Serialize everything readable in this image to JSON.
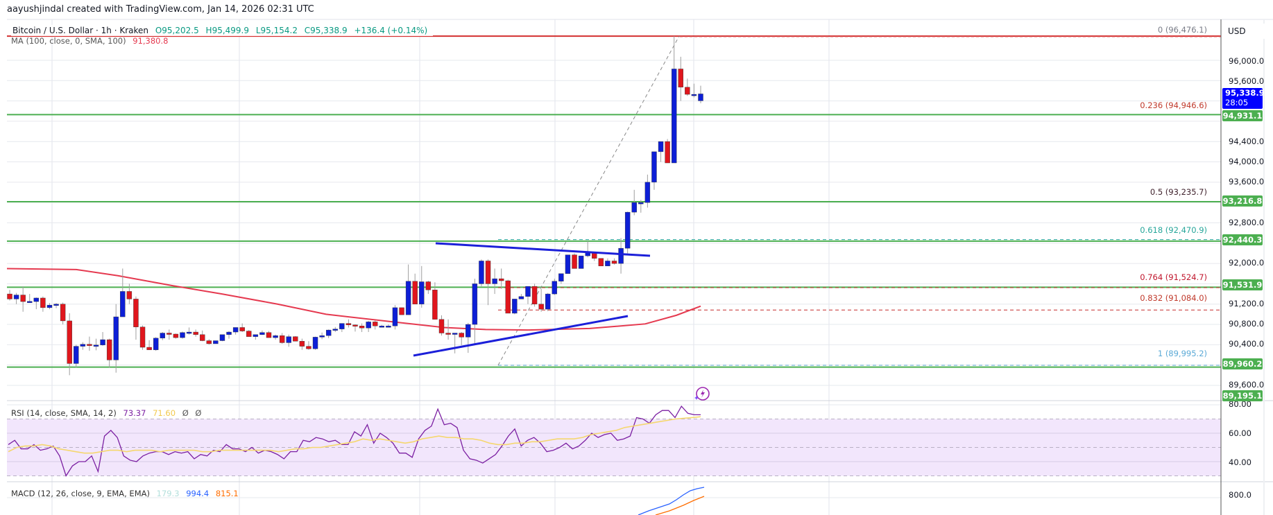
{
  "attribution": "aayushjindal created with TradingView.com, Jan 14, 2026 02:31 UTC",
  "header": {
    "symbol": "Bitcoin / U.S. Dollar · 1h · Kraken",
    "open": "O95,202.5",
    "high": "H95,499.9",
    "low": "L95,154.2",
    "close": "C95,338.9",
    "change": "+136.4 (+0.14%)"
  },
  "ma_legend": {
    "label": "MA (100, close, 0, SMA, 100)",
    "value": "91,380.8"
  },
  "rsi_legend": {
    "label": "RSI (14, close, SMA, 14, 2)",
    "rsi": "73.37",
    "sma": "71.60",
    "extra1": "Ø",
    "extra2": "Ø"
  },
  "macd_legend": {
    "label": "MACD (12, 26, close, 9, EMA, EMA)",
    "hist": "179.3",
    "macd": "994.4",
    "signal": "815.1"
  },
  "axis": {
    "currency": "USD",
    "price_ticks": [
      "96,000.0",
      "95,600.0",
      "94,400.0",
      "94,000.0",
      "93,600.0",
      "92,800.0",
      "92,000.0",
      "91,200.0",
      "90,800.0",
      "90,400.0",
      "89,600.0"
    ],
    "rsi_ticks": [
      "80.00",
      "60.00",
      "40.00"
    ],
    "macd_ticks": [
      "800.0"
    ]
  },
  "current_price": {
    "value": "95,338.9",
    "countdown": "28:05"
  },
  "level_tags": [
    "94,931.1",
    "93,216.8",
    "92,440.3",
    "91,531.9",
    "89,960.2",
    "89,195.1"
  ],
  "fib_labels": [
    {
      "text": "0 (96,476.1)",
      "color": "#787b86"
    },
    {
      "text": "0.236 (94,946.6)",
      "color": "#c0392b"
    },
    {
      "text": "0.5 (93,235.7)",
      "color": "#3d1f2a"
    },
    {
      "text": "0.618 (92,470.9)",
      "color": "#26a69a"
    },
    {
      "text": "0.764 (91,524.7)",
      "color": "#c0162d"
    },
    {
      "text": "0.832 (91,084.0)",
      "color": "#c0392b"
    },
    {
      "text": "1 (89,995.2)",
      "color": "#5aa9d6"
    }
  ],
  "colors": {
    "up_candle": "#0d1fd6",
    "down_candle": "#e0161d",
    "support_line": "#4caf50",
    "ma_line": "#e5394f",
    "trendline": "#1b1fd9",
    "rsi_line": "#7b1fa2",
    "rsi_sma": "#f5d76e",
    "rsi_band": "#f2e6fc",
    "price_tag_bg": "#0000ff",
    "level_tag_bg": "#4caf50",
    "macd_line": "#2962ff",
    "signal_line": "#ff6d00"
  },
  "chart_data": {
    "type": "candlestick",
    "title": "Bitcoin / U.S. Dollar · 1h · Kraken",
    "ylabel": "USD",
    "ylim": [
      89195.1,
      96476.1
    ],
    "horizontal_levels": [
      96476.1,
      94931.1,
      93216.8,
      92440.3,
      91531.9,
      89960.2
    ],
    "fibonacci": [
      {
        "ratio": 0,
        "price": 96476.1
      },
      {
        "ratio": 0.236,
        "price": 94946.6
      },
      {
        "ratio": 0.5,
        "price": 93235.7
      },
      {
        "ratio": 0.618,
        "price": 92470.9
      },
      {
        "ratio": 0.764,
        "price": 91524.7
      },
      {
        "ratio": 0.832,
        "price": 91084.0
      },
      {
        "ratio": 1,
        "price": 89995.2
      }
    ],
    "last_ohlc": {
      "open": 95202.5,
      "high": 95499.9,
      "low": 95154.2,
      "close": 95338.9,
      "change": 136.4,
      "change_pct": 0.14
    },
    "ma100_last": 91380.8,
    "rsi": {
      "period": 14,
      "value": 73.37,
      "sma": 71.6,
      "bands": [
        30,
        50,
        70
      ]
    },
    "macd": {
      "fast": 12,
      "slow": 26,
      "signal": 9,
      "histogram": 179.3,
      "macd": 994.4,
      "signal_value": 815.1
    },
    "candles": [
      [
        91400,
        91480,
        91270,
        91300
      ],
      [
        91300,
        91420,
        91200,
        91380
      ],
      [
        91380,
        91550,
        91050,
        91250
      ],
      [
        91250,
        91400,
        91250,
        91255
      ],
      [
        91250,
        91330,
        91100,
        91320
      ],
      [
        91320,
        91350,
        91050,
        91130
      ],
      [
        91130,
        91220,
        91100,
        91180
      ],
      [
        91180,
        91220,
        91120,
        91200
      ],
      [
        91200,
        91230,
        90800,
        90870
      ],
      [
        90870,
        91020,
        89800,
        90030
      ],
      [
        90030,
        90400,
        89950,
        90370
      ],
      [
        90370,
        90450,
        90300,
        90410
      ],
      [
        90410,
        90560,
        90280,
        90390
      ],
      [
        90390,
        90520,
        90290,
        90395
      ],
      [
        90395,
        90650,
        90380,
        90500
      ],
      [
        90500,
        90520,
        89950,
        90100
      ],
      [
        90100,
        91200,
        89850,
        90950
      ],
      [
        90950,
        91900,
        90950,
        91450
      ],
      [
        91450,
        91600,
        91200,
        91300
      ],
      [
        91300,
        91350,
        90500,
        90750
      ],
      [
        90750,
        90780,
        90300,
        90350
      ],
      [
        90350,
        90490,
        90300,
        90300
      ],
      [
        90300,
        90550,
        90280,
        90530
      ],
      [
        90530,
        90650,
        90490,
        90630
      ],
      [
        90630,
        90700,
        90500,
        90610
      ],
      [
        90610,
        90620,
        90520,
        90540
      ],
      [
        90540,
        90660,
        90520,
        90640
      ],
      [
        90640,
        90740,
        90600,
        90650
      ],
      [
        90650,
        90700,
        90560,
        90600
      ],
      [
        90600,
        90680,
        90470,
        90480
      ],
      [
        90480,
        90510,
        90400,
        90420
      ],
      [
        90420,
        90480,
        90450,
        90480
      ],
      [
        90480,
        90560,
        90470,
        90600
      ],
      [
        90600,
        90670,
        90520,
        90650
      ],
      [
        90650,
        90720,
        90600,
        90740
      ],
      [
        90740,
        90820,
        90650,
        90670
      ],
      [
        90670,
        90690,
        90560,
        90560
      ],
      [
        90560,
        90600,
        90500,
        90600
      ],
      [
        90600,
        90680,
        90590,
        90640
      ],
      [
        90640,
        90670,
        90540,
        90540
      ],
      [
        90540,
        90600,
        90500,
        90580
      ],
      [
        90580,
        90630,
        90420,
        90440
      ],
      [
        90440,
        90600,
        90360,
        90560
      ],
      [
        90560,
        90570,
        90500,
        90470
      ],
      [
        90470,
        90520,
        90300,
        90370
      ],
      [
        90370,
        90470,
        90300,
        90320
      ],
      [
        90320,
        90560,
        90300,
        90550
      ],
      [
        90550,
        90640,
        90510,
        90580
      ],
      [
        90580,
        90700,
        90530,
        90690
      ],
      [
        90690,
        90750,
        90650,
        90710
      ],
      [
        90710,
        90790,
        90650,
        90820
      ],
      [
        90820,
        90900,
        90740,
        90790
      ],
      [
        90790,
        90800,
        90660,
        90770
      ],
      [
        90770,
        90820,
        90650,
        90730
      ],
      [
        90730,
        90870,
        90650,
        90850
      ],
      [
        90850,
        90880,
        90700,
        90770
      ],
      [
        90770,
        90790,
        90760,
        90770
      ],
      [
        90770,
        90800,
        90750,
        90770
      ],
      [
        90770,
        91180,
        90700,
        91130
      ],
      [
        91130,
        91130,
        90990,
        90990
      ],
      [
        90990,
        91980,
        90990,
        91650
      ],
      [
        91650,
        91800,
        91200,
        91200
      ],
      [
        91200,
        91950,
        91130,
        91640
      ],
      [
        91640,
        91660,
        91400,
        91480
      ],
      [
        91480,
        91630,
        90900,
        90900
      ],
      [
        90900,
        90980,
        90580,
        90630
      ],
      [
        90630,
        90900,
        90500,
        90610
      ],
      [
        90610,
        90630,
        90230,
        90630
      ],
      [
        90630,
        90650,
        90390,
        90550
      ],
      [
        90550,
        90830,
        90240,
        90800
      ],
      [
        90800,
        91700,
        90400,
        91600
      ],
      [
        91600,
        92080,
        91550,
        92050
      ],
      [
        92050,
        92080,
        91180,
        91600
      ],
      [
        91600,
        91900,
        91400,
        91700
      ],
      [
        91700,
        91900,
        91500,
        91660
      ],
      [
        91660,
        91680,
        91020,
        91020
      ],
      [
        91020,
        91300,
        91000,
        91300
      ],
      [
        91300,
        91400,
        91330,
        91350
      ],
      [
        91350,
        91550,
        91200,
        91550
      ],
      [
        91550,
        91600,
        91150,
        91200
      ],
      [
        91200,
        91500,
        91050,
        91100
      ],
      [
        91100,
        91420,
        91060,
        91400
      ],
      [
        91400,
        91700,
        91380,
        91650
      ],
      [
        91650,
        91780,
        91600,
        91800
      ],
      [
        91800,
        92100,
        91800,
        92170
      ],
      [
        92170,
        92200,
        91900,
        91900
      ],
      [
        91900,
        92150,
        91900,
        92150
      ],
      [
        92150,
        92440,
        92120,
        92220
      ],
      [
        92220,
        92220,
        92050,
        92100
      ],
      [
        92100,
        92100,
        91950,
        91950
      ],
      [
        91950,
        92100,
        91950,
        92050
      ],
      [
        92050,
        92100,
        91980,
        92000
      ],
      [
        92000,
        92500,
        91800,
        92300
      ],
      [
        92300,
        93020,
        92200,
        93010
      ],
      [
        93010,
        93450,
        92950,
        93200
      ],
      [
        93200,
        93250,
        93000,
        93200
      ],
      [
        93200,
        93750,
        93100,
        93600
      ],
      [
        93600,
        94200,
        93450,
        94200
      ],
      [
        94200,
        94400,
        94000,
        94400
      ],
      [
        94400,
        94450,
        93980,
        93980
      ],
      [
        93980,
        96476,
        93980,
        95830
      ],
      [
        95830,
        96070,
        95200,
        95470
      ],
      [
        95470,
        95640,
        95300,
        95330
      ],
      [
        95330,
        95540,
        95270,
        95330
      ],
      [
        95202.5,
        95499.9,
        95154.2,
        95338.9
      ]
    ]
  }
}
